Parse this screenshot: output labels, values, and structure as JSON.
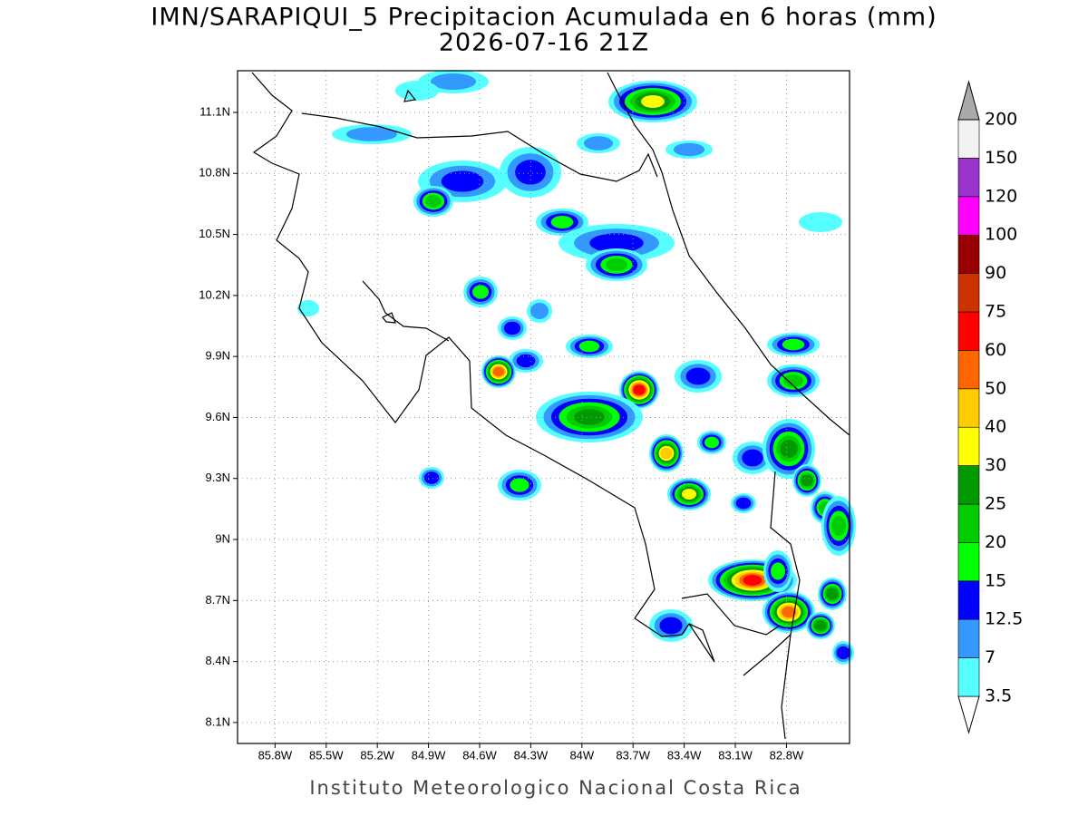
{
  "title": "IMN/SARAPIQUI_5 Precipitacion Acumulada en 6 horas (mm)",
  "subtitle": "2026-07-16 21Z",
  "map": {
    "xlim": [
      -86.02,
      -82.43
    ],
    "ylim": [
      7.997,
      11.305
    ],
    "xticks": [
      {
        "value": -85.8,
        "label": "85.8W"
      },
      {
        "value": -85.5,
        "label": "85.5W"
      },
      {
        "value": -85.2,
        "label": "85.2W"
      },
      {
        "value": -84.9,
        "label": "84.9W"
      },
      {
        "value": -84.6,
        "label": "84.6W"
      },
      {
        "value": -84.3,
        "label": "84.3W"
      },
      {
        "value": -84.0,
        "label": "84W"
      },
      {
        "value": -83.7,
        "label": "83.7W"
      },
      {
        "value": -83.4,
        "label": "83.4W"
      },
      {
        "value": -83.1,
        "label": "83.1W"
      },
      {
        "value": -82.8,
        "label": "82.8W"
      }
    ],
    "yticks": [
      {
        "value": 8.1,
        "label": "8.1N"
      },
      {
        "value": 8.4,
        "label": "8.4N"
      },
      {
        "value": 8.7,
        "label": "8.7N"
      },
      {
        "value": 9.0,
        "label": "9N"
      },
      {
        "value": 9.3,
        "label": "9.3N"
      },
      {
        "value": 9.6,
        "label": "9.6N"
      },
      {
        "value": 9.9,
        "label": "9.9N"
      },
      {
        "value": 10.2,
        "label": "10.2N"
      },
      {
        "value": 10.5,
        "label": "10.5N"
      },
      {
        "value": 10.8,
        "label": "10.8N"
      },
      {
        "value": 11.1,
        "label": "11.1N"
      }
    ],
    "grid": true
  },
  "colorbar": {
    "levels": [
      3.5,
      7,
      12.5,
      15,
      20,
      25,
      30,
      40,
      50,
      60,
      75,
      90,
      100,
      120,
      150,
      200
    ],
    "colors": [
      "#ffffff",
      "#55ffff",
      "#3399ff",
      "#0000ff",
      "#00ff00",
      "#00cc00",
      "#009900",
      "#ffff00",
      "#ffcc00",
      "#ff6600",
      "#ff0000",
      "#cc3300",
      "#990000",
      "#ff00ff",
      "#9933cc",
      "#f2f2f2",
      "#aaaaaa"
    ]
  },
  "footer": "Instituto Meteorologico Nacional Costa Rica"
}
